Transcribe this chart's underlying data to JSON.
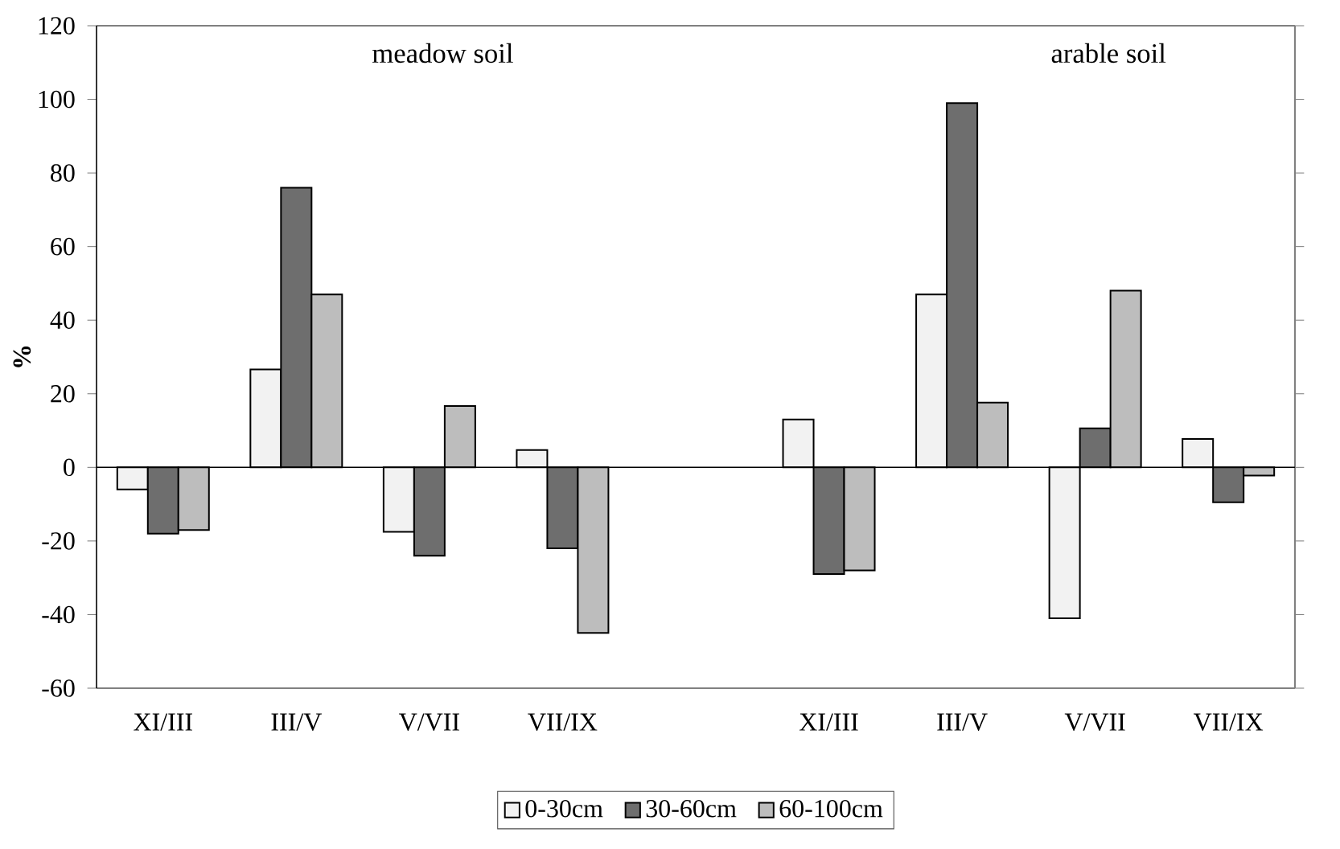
{
  "chart_data": {
    "type": "bar",
    "ylabel": "%",
    "categories": [
      "XI/III",
      "III/V",
      "V/VII",
      "VII/IX",
      null,
      "XI/III",
      "III/V",
      "V/VII",
      "VII/IX"
    ],
    "series": [
      {
        "name": "0-30cm",
        "color": "#f2f2f2",
        "values": [
          -6,
          26.6,
          -17.5,
          4.7,
          null,
          13,
          47,
          -41,
          7.7
        ]
      },
      {
        "name": "30-60cm",
        "color": "#6e6e6e",
        "values": [
          -18,
          76,
          -24,
          -22,
          null,
          -29,
          99,
          10.6,
          -9.5
        ]
      },
      {
        "name": "60-100cm",
        "color": "#bdbdbd",
        "values": [
          -17,
          47,
          16.7,
          -45,
          null,
          -28,
          17.6,
          48,
          -2.2
        ]
      }
    ],
    "ylim": [
      -60,
      120
    ],
    "yticks": [
      -60,
      -40,
      -20,
      0,
      20,
      40,
      60,
      80,
      100,
      120
    ],
    "annotations": [
      "meadow soil",
      "arable soil"
    ],
    "legend": "bottom"
  }
}
